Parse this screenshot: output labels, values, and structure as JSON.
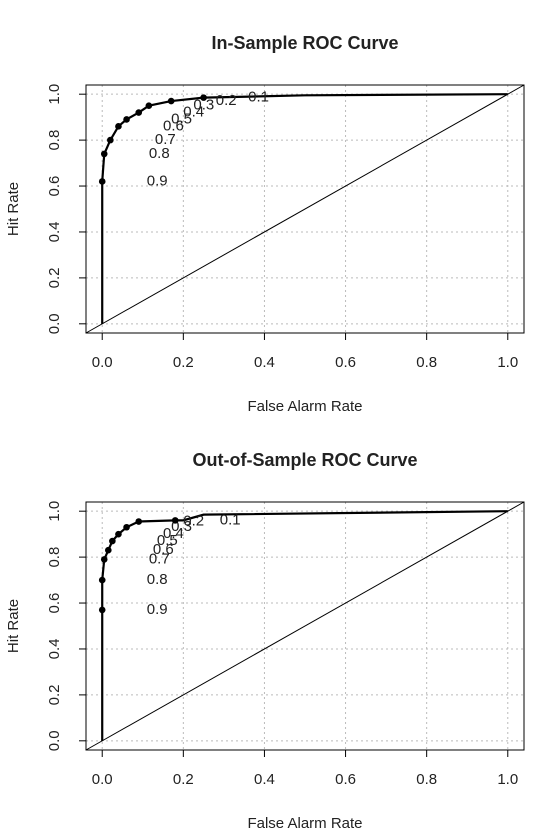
{
  "chart_data": [
    {
      "type": "line",
      "title": "In-Sample ROC Curve",
      "x_label": "False Alarm Rate",
      "y_label": "Hit Rate",
      "xlim": [
        -0.04,
        1.04
      ],
      "ylim": [
        -0.04,
        1.04
      ],
      "xticks": [
        {
          "value": 0,
          "label": "0.0"
        },
        0.2,
        0.4,
        0.6,
        0.8,
        {
          "value": 1,
          "label": "1.0"
        }
      ],
      "yticks": [
        {
          "value": 0,
          "label": "0.0"
        },
        0.2,
        0.4,
        0.6,
        0.8,
        {
          "value": 1,
          "label": "1.0"
        }
      ],
      "grid": true,
      "series": [
        {
          "color": "#000000",
          "x": [
            0,
            0,
            0.005,
            0.02,
            0.04,
            0.06,
            0.09,
            0.115,
            0.17,
            0.25,
            0.5,
            1
          ],
          "values": [
            0,
            0.62,
            0.74,
            0.8,
            0.86,
            0.89,
            0.92,
            0.95,
            0.97,
            0.985,
            0.995,
            1
          ]
        }
      ],
      "thresholds": {
        "labels": [
          0.9,
          0.8,
          0.7,
          0.6,
          0.5,
          0.4,
          0.3,
          0.2,
          0.1
        ],
        "x": [
          0,
          0.005,
          0.02,
          0.04,
          0.06,
          0.09,
          0.115,
          0.17,
          0.25
        ],
        "values": [
          0.62,
          0.74,
          0.8,
          0.86,
          0.89,
          0.92,
          0.95,
          0.97,
          0.985
        ]
      }
    },
    {
      "type": "line",
      "title": "Out-of-Sample ROC Curve",
      "x_label": "False Alarm Rate",
      "y_label": "Hit Rate",
      "xlim": [
        -0.04,
        1.04
      ],
      "ylim": [
        -0.04,
        1.04
      ],
      "xticks": [
        {
          "value": 0,
          "label": "0.0"
        },
        0.2,
        0.4,
        0.6,
        0.8,
        {
          "value": 1,
          "label": "1.0"
        }
      ],
      "yticks": [
        {
          "value": 0,
          "label": "0.0"
        },
        0.2,
        0.4,
        0.6,
        0.8,
        {
          "value": 1,
          "label": "1.0"
        }
      ],
      "grid": true,
      "series": [
        {
          "color": "#000000",
          "x": [
            0,
            0,
            0,
            0.005,
            0.015,
            0.025,
            0.04,
            0.06,
            0.09,
            0.18,
            0.2,
            0.25,
            1
          ],
          "values": [
            0,
            0.57,
            0.7,
            0.79,
            0.83,
            0.87,
            0.9,
            0.93,
            0.955,
            0.96,
            0.96,
            0.985,
            1
          ]
        }
      ],
      "thresholds": {
        "labels": [
          0.9,
          0.8,
          0.7,
          0.6,
          0.5,
          0.4,
          0.3,
          0.2,
          0.1
        ],
        "x": [
          0,
          0,
          0.005,
          0.015,
          0.025,
          0.04,
          0.06,
          0.09,
          0.18
        ],
        "values": [
          0.57,
          0.7,
          0.79,
          0.83,
          0.87,
          0.9,
          0.93,
          0.955,
          0.96
        ]
      }
    }
  ]
}
